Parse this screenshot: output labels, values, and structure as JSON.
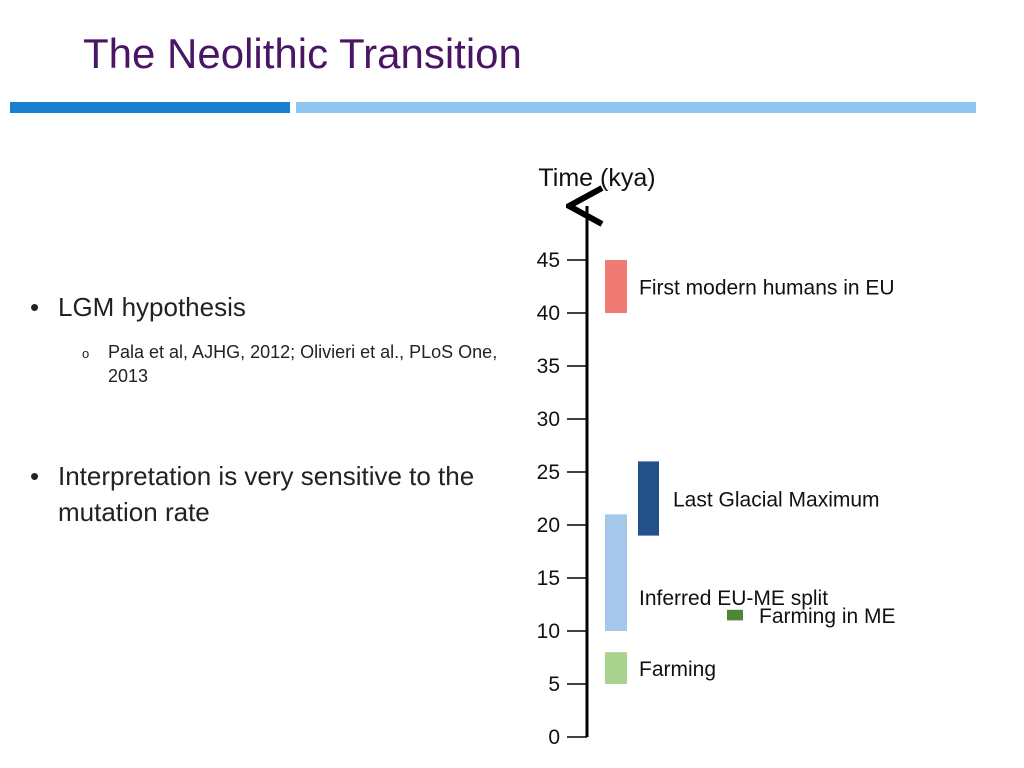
{
  "slide": {
    "title": "The Neolithic Transition",
    "bullets": [
      {
        "text": "LGM hypothesis",
        "sub": [
          "Pala et al, AJHG, 2012; Olivieri et al., PLoS One, 2013"
        ]
      },
      {
        "text": "Interpretation is very sensitive to the mutation rate"
      }
    ],
    "bullet_glyph": "•",
    "sub_bullet_glyph": "o"
  },
  "timeline": {
    "axis_label": "Time (kya)",
    "ticks": [
      0,
      5,
      10,
      15,
      20,
      25,
      30,
      35,
      40,
      45
    ],
    "events": [
      {
        "label": "First modern humans in EU",
        "start": 40,
        "end": 45,
        "color": "#f07a74",
        "lane": 0
      },
      {
        "label": "Last Glacial Maximum",
        "start": 19,
        "end": 26,
        "color": "#24508a",
        "lane": 1
      },
      {
        "label": "Inferred EU-ME split",
        "start": 10,
        "end": 21,
        "color": "#a5c8ea",
        "lane": 0
      },
      {
        "label": "Farming in ME",
        "start": 11,
        "end": 12,
        "color": "#4e8637",
        "lane": 2
      },
      {
        "label": "Farming",
        "start": 5,
        "end": 8,
        "color": "#a7d38e",
        "lane": 0
      }
    ]
  }
}
